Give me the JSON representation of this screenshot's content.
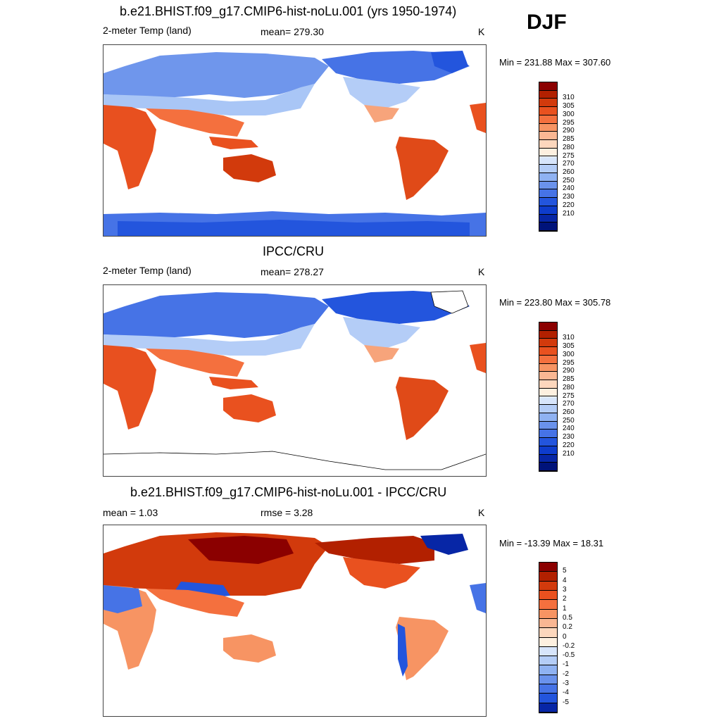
{
  "season": "DJF",
  "panels": [
    {
      "title": "b.e21.BHIST.f09_g17.CMIP6-hist-noLu.001 (yrs 1950-1974)",
      "left_label": "2-meter Temp (land)",
      "center_label": "mean= 279.30",
      "right_label": "K",
      "range_text": "Min = 231.88 Max = 307.60"
    },
    {
      "title": "IPCC/CRU",
      "left_label": "2-meter Temp (land)",
      "center_label": "mean= 278.27",
      "right_label": "K",
      "range_text": "Min = 223.80 Max = 305.78"
    },
    {
      "title": "b.e21.BHIST.f09_g17.CMIP6-hist-noLu.001 - IPCC/CRU",
      "left_label": "mean =   1.03",
      "center_label": "rmse =   3.28",
      "right_label": "K",
      "range_text": "Min = -13.39 Max =  18.31"
    }
  ],
  "colorbars": {
    "temp": {
      "labels": [
        "310",
        "305",
        "300",
        "295",
        "290",
        "285",
        "280",
        "275",
        "270",
        "260",
        "250",
        "240",
        "230",
        "220",
        "210"
      ],
      "colors": [
        "#8b0000",
        "#b22000",
        "#d23a0c",
        "#e9511f",
        "#f4703e",
        "#f79463",
        "#fab793",
        "#fcd7bd",
        "#fdf0e0",
        "#d7e5fb",
        "#b4cdf7",
        "#8fb2f2",
        "#6a92ec",
        "#4673e6",
        "#2355dd",
        "#0e3ccc",
        "#0726a6",
        "#00137a"
      ]
    },
    "diff": {
      "labels": [
        "5",
        "4",
        "3",
        "2",
        "1",
        "0.5",
        "0.2",
        "0",
        "-0.2",
        "-0.5",
        "-1",
        "-2",
        "-3",
        "-4",
        "-5"
      ],
      "colors": [
        "#8b0000",
        "#b22000",
        "#d23a0c",
        "#e9511f",
        "#f4703e",
        "#f79463",
        "#fab793",
        "#fcd7bd",
        "#fdf0e0",
        "#d7e5fb",
        "#b4cdf7",
        "#8fb2f2",
        "#6a92ec",
        "#4673e6",
        "#2355dd",
        "#0726a6"
      ]
    }
  }
}
